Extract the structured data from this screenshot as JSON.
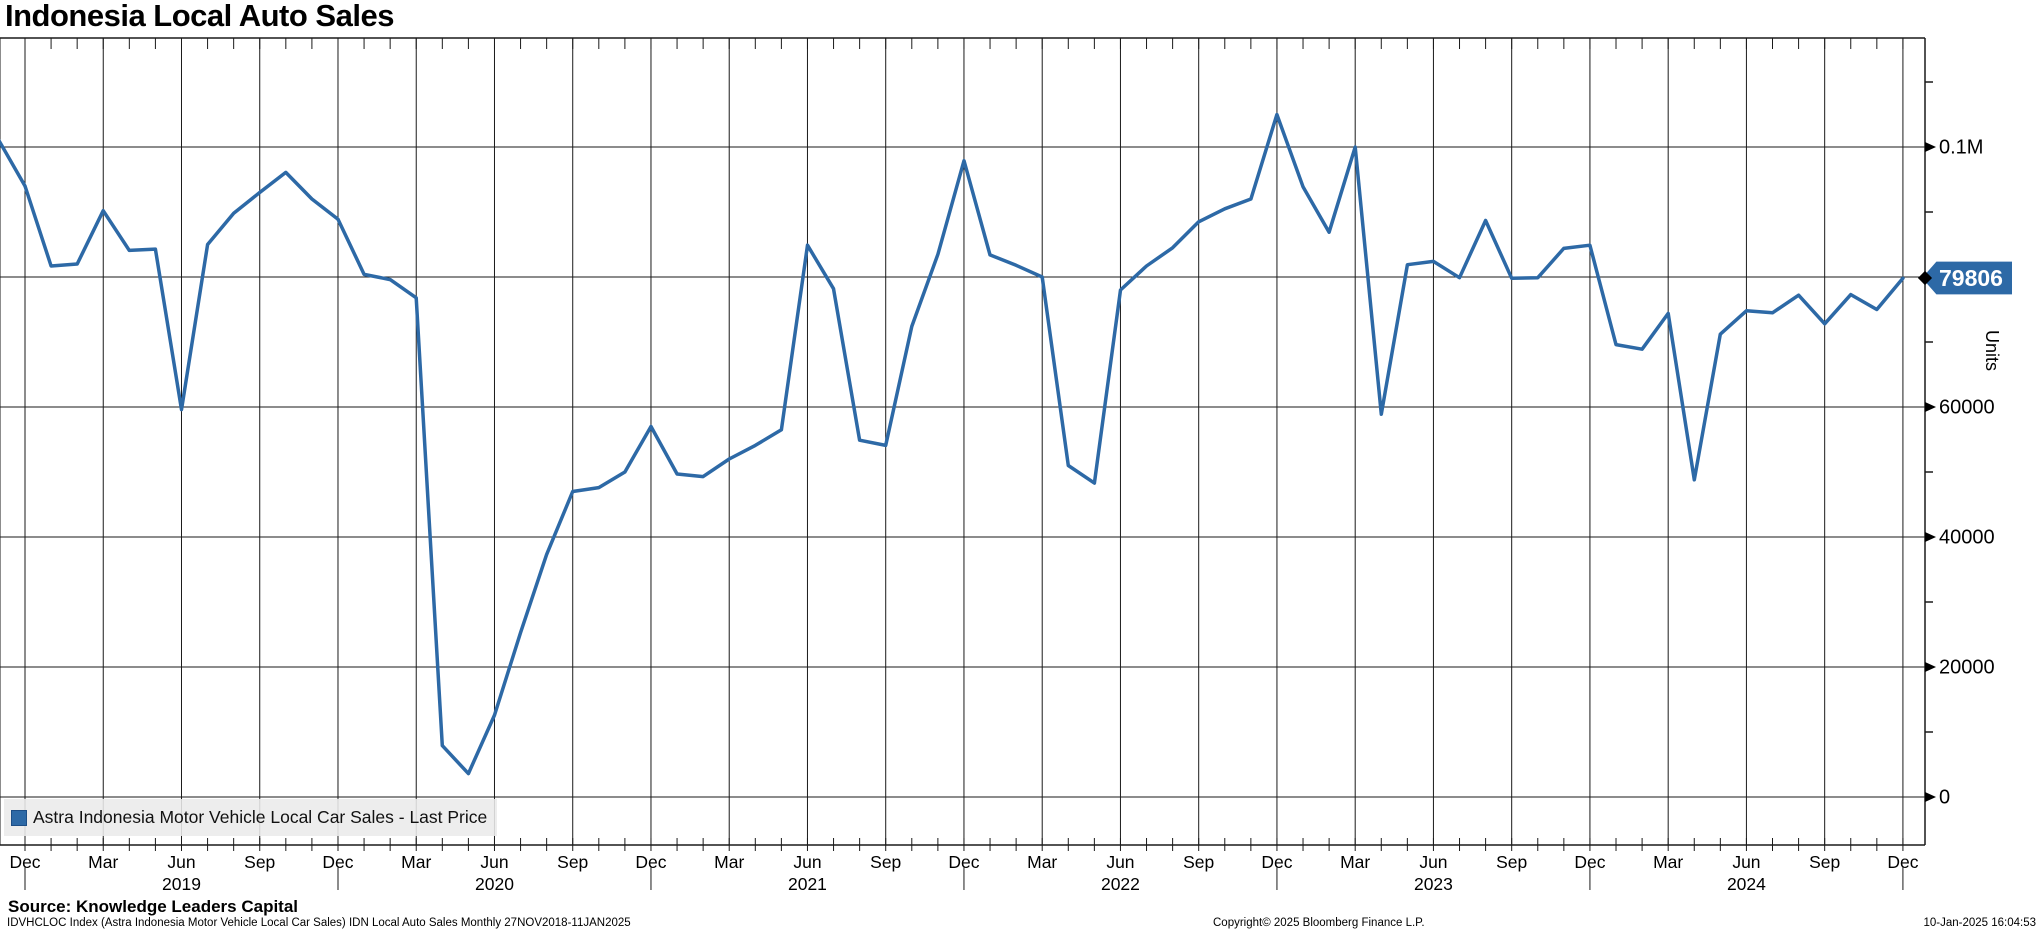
{
  "title": "Indonesia Local Auto Sales",
  "legend": {
    "label": "Astra Indonesia Motor Vehicle Local Car Sales - Last Price",
    "swatch_color": "#2d69a6"
  },
  "badge": {
    "value": "79806"
  },
  "y_axis": {
    "unit_label": "Units",
    "major_ticks": [
      {
        "value": 100000,
        "label": "0.1M"
      },
      {
        "value": 80000,
        "label": ""
      },
      {
        "value": 60000,
        "label": "60000"
      },
      {
        "value": 40000,
        "label": "40000"
      },
      {
        "value": 20000,
        "label": "20000"
      },
      {
        "value": 0,
        "label": "0"
      }
    ],
    "minor_tick_values": [
      110000,
      90000,
      70000,
      50000,
      30000,
      10000
    ]
  },
  "x_axis": {
    "quarter_labels": [
      "Dec",
      "Mar",
      "Jun",
      "Sep",
      "Dec",
      "Mar",
      "Jun",
      "Sep",
      "Dec",
      "Mar",
      "Jun",
      "Sep",
      "Dec",
      "Mar",
      "Jun",
      "Sep",
      "Dec",
      "Mar",
      "Jun",
      "Sep",
      "Dec",
      "Mar",
      "Jun",
      "Sep",
      "Dec"
    ],
    "year_labels": [
      "2019",
      "2020",
      "2021",
      "2022",
      "2023",
      "2024"
    ]
  },
  "footer": {
    "source": "Source: Knowledge Leaders Capital",
    "description": "IDVHCLOC Index (Astra Indonesia Motor Vehicle Local Car Sales) IDN Local Auto Sales  Monthly 27NOV2018-11JAN2025",
    "copyright": "Copyright© 2025 Bloomberg Finance L.P.",
    "timestamp": "10-Jan-2025 16:04:53"
  },
  "colors": {
    "line": "#2d69a6",
    "badge_bg": "#2d69a6",
    "grid": "#1a1a1a",
    "axis": "#000000",
    "legend_bg": "#eaeaea"
  },
  "chart_data": {
    "type": "line",
    "title": "Indonesia Local Auto Sales",
    "series_name": "Astra Indonesia Motor Vehicle Local Car Sales - Last Price",
    "ylabel": "Units",
    "ylim": [
      -7385,
      116770
    ],
    "grid": true,
    "legend_position": "bottom-left",
    "last_price": 79806,
    "x": [
      "2018-11",
      "2018-12",
      "2019-01",
      "2019-02",
      "2019-03",
      "2019-04",
      "2019-05",
      "2019-06",
      "2019-07",
      "2019-08",
      "2019-09",
      "2019-10",
      "2019-11",
      "2019-12",
      "2020-01",
      "2020-02",
      "2020-03",
      "2020-04",
      "2020-05",
      "2020-06",
      "2020-07",
      "2020-08",
      "2020-09",
      "2020-10",
      "2020-11",
      "2020-12",
      "2021-01",
      "2021-02",
      "2021-03",
      "2021-04",
      "2021-05",
      "2021-06",
      "2021-07",
      "2021-08",
      "2021-09",
      "2021-10",
      "2021-11",
      "2021-12",
      "2022-01",
      "2022-02",
      "2022-03",
      "2022-04",
      "2022-05",
      "2022-06",
      "2022-07",
      "2022-08",
      "2022-09",
      "2022-10",
      "2022-11",
      "2022-12",
      "2023-01",
      "2023-02",
      "2023-03",
      "2023-04",
      "2023-05",
      "2023-06",
      "2023-07",
      "2023-08",
      "2023-09",
      "2023-10",
      "2023-11",
      "2023-12",
      "2024-01",
      "2024-02",
      "2024-03",
      "2024-04",
      "2024-05",
      "2024-06",
      "2024-07",
      "2024-08",
      "2024-09",
      "2024-10",
      "2024-11",
      "2024-12"
    ],
    "values": [
      101000,
      94000,
      81700,
      82000,
      90200,
      84100,
      84300,
      59600,
      85000,
      89800,
      93000,
      96100,
      92000,
      88900,
      80400,
      79600,
      76800,
      7900,
      3600,
      12600,
      25300,
      37300,
      47000,
      47600,
      50000,
      57000,
      49700,
      49300,
      52000,
      54100,
      56500,
      84900,
      78200,
      54900,
      54100,
      72400,
      83500,
      97900,
      83400,
      81800,
      80000,
      51000,
      48300,
      78000,
      81700,
      84500,
      88500,
      90500,
      92000,
      105000,
      93900,
      86900,
      100000,
      58900,
      81900,
      82400,
      79900,
      88700,
      79800,
      79900,
      84400,
      84900,
      69600,
      68900,
      74400,
      48800,
      71200,
      74800,
      74500,
      77200,
      72800,
      77300,
      75000,
      79806
    ]
  }
}
